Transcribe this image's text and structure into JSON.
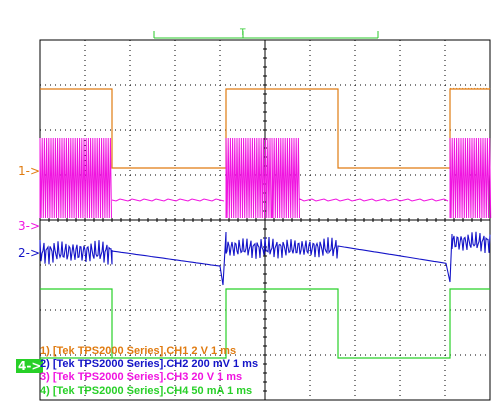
{
  "colors": {
    "ch1": "#e07b10",
    "ch2": "#1414c8",
    "ch3": "#f014e0",
    "ch4": "#28d028",
    "grid": "#000000"
  },
  "trigger_marker": {
    "label": "T"
  },
  "channel_markers": [
    {
      "id": "ch1",
      "label": "1->"
    },
    {
      "id": "ch3",
      "label": "3->"
    },
    {
      "id": "ch2",
      "label": "2->"
    },
    {
      "id": "ch4",
      "label": "4->"
    }
  ],
  "legend": [
    {
      "id": "ch1",
      "text": "1) [Tek TPS2000 Series].CH1  2  V   1 ms"
    },
    {
      "id": "ch2",
      "text": "2) [Tek TPS2000 Series].CH2  200 mV   1 ms"
    },
    {
      "id": "ch3",
      "text": "3) [Tek TPS2000 Series].CH3  20  V    1 ms"
    },
    {
      "id": "ch4",
      "text": "4) [Tek TPS2000 Series].CH4  50 mA    1 ms"
    }
  ]
}
